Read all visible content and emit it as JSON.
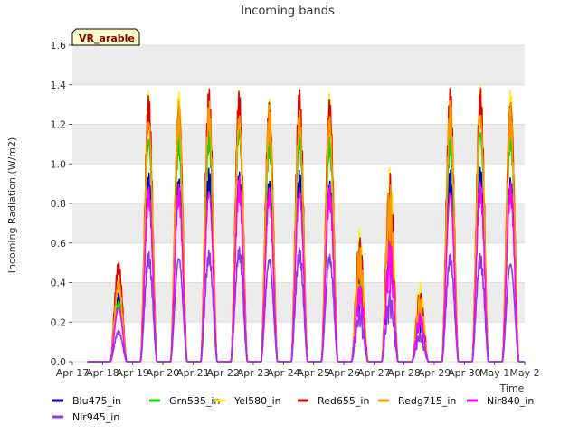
{
  "chart_data": {
    "type": "line",
    "title": "Incoming bands",
    "ylabel": "Incoming Radiation (W/m2)",
    "xlabel": "Time",
    "tag": "VR_arable",
    "ylim": [
      0,
      1.6
    ],
    "yticks": [
      "0.0",
      "0.2",
      "0.4",
      "0.6",
      "0.8",
      "1.0",
      "1.2",
      "1.4",
      "1.6"
    ],
    "xticks": [
      "Apr 17",
      "Apr 18",
      "Apr 19",
      "Apr 20",
      "Apr 21",
      "Apr 22",
      "Apr 23",
      "Apr 24",
      "Apr 25",
      "Apr 26",
      "Apr 27",
      "Apr 28",
      "Apr 29",
      "Apr 30",
      "May 1",
      "May 2"
    ],
    "x_start": "2023-04-17",
    "x_end": "2023-05-02",
    "grid": true,
    "legend_position": "bottom",
    "days": [
      "Apr 17",
      "Apr 18",
      "Apr 19",
      "Apr 20",
      "Apr 21",
      "Apr 22",
      "Apr 23",
      "Apr 24",
      "Apr 25",
      "Apr 26",
      "Apr 27",
      "Apr 28",
      "Apr 29",
      "Apr 30",
      "May 1"
    ],
    "series": [
      {
        "name": "Blu475_in",
        "color": "#0000cc",
        "daily_peak": [
          0.0,
          0.35,
          0.97,
          0.98,
          0.98,
          0.99,
          0.95,
          0.97,
          0.96,
          0.45,
          0.7,
          0.25,
          0.98,
          1.0,
          0.98
        ]
      },
      {
        "name": "Grn535_in",
        "color": "#00dd00",
        "daily_peak": [
          0.0,
          0.31,
          1.2,
          1.21,
          1.21,
          1.25,
          1.2,
          1.2,
          1.17,
          0.52,
          0.9,
          0.3,
          1.2,
          1.24,
          1.24
        ]
      },
      {
        "name": "Yel580_in",
        "color": "#ffee00",
        "daily_peak": [
          0.0,
          0.4,
          1.38,
          1.39,
          1.4,
          1.38,
          1.37,
          1.38,
          1.36,
          0.68,
          1.0,
          0.4,
          1.42,
          1.41,
          1.4
        ]
      },
      {
        "name": "Red655_in",
        "color": "#dd0000",
        "daily_peak": [
          0.0,
          0.51,
          1.36,
          1.38,
          1.39,
          1.4,
          1.37,
          1.38,
          1.38,
          0.64,
          0.96,
          0.36,
          1.4,
          1.4,
          1.4
        ]
      },
      {
        "name": "Redg715_in",
        "color": "#ff9900",
        "daily_peak": [
          0.0,
          0.42,
          1.3,
          1.33,
          1.34,
          1.32,
          1.3,
          1.31,
          1.29,
          0.6,
          0.92,
          0.34,
          1.33,
          1.34,
          1.32
        ]
      },
      {
        "name": "Nir840_in",
        "color": "#ff00ff",
        "daily_peak": [
          0.0,
          0.29,
          0.9,
          0.91,
          0.92,
          0.94,
          0.9,
          0.92,
          0.9,
          0.4,
          0.63,
          0.25,
          0.91,
          0.92,
          0.92
        ]
      },
      {
        "name": "Nir945_in",
        "color": "#9933ee",
        "daily_peak": [
          0.0,
          0.16,
          0.56,
          0.56,
          0.57,
          0.59,
          0.55,
          0.58,
          0.56,
          0.27,
          0.36,
          0.15,
          0.56,
          0.55,
          0.53
        ]
      }
    ]
  }
}
